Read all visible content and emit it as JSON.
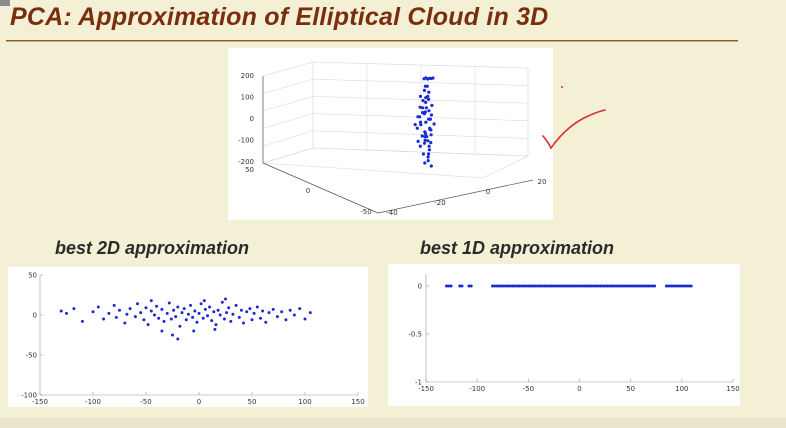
{
  "slide": {
    "title": "PCA: Approximation of Elliptical Cloud in 3D"
  },
  "panels": {
    "label_2d": "best 2D approximation",
    "label_1d": "best 1D approximation"
  },
  "colors": {
    "title": "#7a2e0e",
    "points": "#1a2bd6",
    "annotation": "#d63030",
    "background": "#f3f0d6"
  },
  "chart_data": [
    {
      "type": "scatter",
      "title": "",
      "projection": "3d",
      "z_ticks": [
        "200",
        "100",
        "0",
        "-100",
        "-200"
      ],
      "z_extra_tick": "50",
      "x_ticks": [
        "0",
        "-50"
      ],
      "y_ticks": [
        "20",
        "0",
        "-20",
        "-40"
      ],
      "zlim": [
        -200,
        200
      ],
      "points_description": "elongated vertical cloud",
      "points": [
        [
          0,
          0,
          180
        ],
        [
          1,
          0,
          175
        ],
        [
          2,
          0,
          178
        ],
        [
          -1,
          0,
          176
        ],
        [
          3,
          0,
          177
        ],
        [
          4,
          0,
          179
        ],
        [
          0,
          2,
          150
        ],
        [
          1,
          -2,
          140
        ],
        [
          -1,
          1,
          130
        ],
        [
          2,
          0,
          120
        ],
        [
          0,
          3,
          110
        ],
        [
          -2,
          -1,
          100
        ],
        [
          1,
          2,
          95
        ],
        [
          2,
          -3,
          90
        ],
        [
          -1,
          0,
          85
        ],
        [
          0,
          1,
          80
        ],
        [
          3,
          2,
          70
        ],
        [
          -3,
          1,
          60
        ],
        [
          1,
          0,
          55
        ],
        [
          0,
          -2,
          50
        ],
        [
          2,
          1,
          45
        ],
        [
          -2,
          2,
          40
        ],
        [
          1,
          -1,
          35
        ],
        [
          0,
          0,
          30
        ],
        [
          4,
          0,
          25
        ],
        [
          -4,
          1,
          20
        ],
        [
          2,
          3,
          15
        ],
        [
          -1,
          -3,
          10
        ],
        [
          3,
          -1,
          5
        ],
        [
          0,
          2,
          0
        ],
        [
          -2,
          0,
          -5
        ],
        [
          5,
          1,
          -10
        ],
        [
          -5,
          0,
          -15
        ],
        [
          1,
          4,
          -20
        ],
        [
          0,
          -4,
          -25
        ],
        [
          2,
          2,
          -30
        ],
        [
          -3,
          -2,
          -35
        ],
        [
          4,
          -1,
          -40
        ],
        [
          -1,
          3,
          -45
        ],
        [
          1,
          -2,
          -50
        ],
        [
          3,
          1,
          -55
        ],
        [
          -2,
          1,
          -60
        ],
        [
          0,
          0,
          -65
        ],
        [
          2,
          -2,
          -70
        ],
        [
          -1,
          2,
          -75
        ],
        [
          1,
          1,
          -80
        ],
        [
          -4,
          0,
          -85
        ],
        [
          3,
          0,
          -90
        ],
        [
          0,
          -1,
          -95
        ],
        [
          1,
          2,
          -100
        ],
        [
          -2,
          -2,
          -110
        ],
        [
          2,
          0,
          -120
        ],
        [
          0,
          3,
          -130
        ],
        [
          -1,
          -1,
          -140
        ],
        [
          1,
          0,
          -150
        ],
        [
          0,
          2,
          -160
        ],
        [
          -1,
          0,
          -175
        ],
        [
          2,
          1,
          -185
        ]
      ]
    },
    {
      "type": "scatter",
      "title": "",
      "x_ticks": [
        "-150",
        "-100",
        "-50",
        "0",
        "50",
        "100",
        "150"
      ],
      "y_ticks": [
        "50",
        "0",
        "-50",
        "-100"
      ],
      "xlim": [
        -150,
        150
      ],
      "ylim": [
        -100,
        50
      ],
      "points": [
        [
          -130,
          5
        ],
        [
          -125,
          2
        ],
        [
          -118,
          8
        ],
        [
          -110,
          -8
        ],
        [
          -100,
          4
        ],
        [
          -95,
          10
        ],
        [
          -90,
          -5
        ],
        [
          -85,
          2
        ],
        [
          -80,
          12
        ],
        [
          -78,
          -3
        ],
        [
          -75,
          6
        ],
        [
          -70,
          -10
        ],
        [
          -68,
          1
        ],
        [
          -65,
          8
        ],
        [
          -60,
          -2
        ],
        [
          -58,
          14
        ],
        [
          -55,
          3
        ],
        [
          -52,
          -6
        ],
        [
          -50,
          9
        ],
        [
          -48,
          -12
        ],
        [
          -45,
          5
        ],
        [
          -42,
          0
        ],
        [
          -40,
          11
        ],
        [
          -38,
          -4
        ],
        [
          -35,
          7
        ],
        [
          -33,
          -8
        ],
        [
          -30,
          2
        ],
        [
          -28,
          15
        ],
        [
          -26,
          -5
        ],
        [
          -24,
          6
        ],
        [
          -22,
          -2
        ],
        [
          -20,
          10
        ],
        [
          -18,
          -14
        ],
        [
          -16,
          3
        ],
        [
          -14,
          8
        ],
        [
          -12,
          -6
        ],
        [
          -10,
          1
        ],
        [
          -8,
          12
        ],
        [
          -6,
          -3
        ],
        [
          -4,
          5
        ],
        [
          -2,
          -9
        ],
        [
          0,
          2
        ],
        [
          2,
          14
        ],
        [
          4,
          -4
        ],
        [
          6,
          7
        ],
        [
          8,
          -1
        ],
        [
          10,
          10
        ],
        [
          12,
          -7
        ],
        [
          14,
          4
        ],
        [
          16,
          -12
        ],
        [
          18,
          6
        ],
        [
          20,
          0
        ],
        [
          22,
          16
        ],
        [
          24,
          -5
        ],
        [
          26,
          3
        ],
        [
          28,
          9
        ],
        [
          30,
          -8
        ],
        [
          32,
          1
        ],
        [
          35,
          12
        ],
        [
          38,
          -3
        ],
        [
          40,
          6
        ],
        [
          42,
          -10
        ],
        [
          45,
          4
        ],
        [
          48,
          8
        ],
        [
          50,
          -6
        ],
        [
          52,
          2
        ],
        [
          55,
          10
        ],
        [
          58,
          -4
        ],
        [
          60,
          5
        ],
        [
          63,
          -9
        ],
        [
          66,
          3
        ],
        [
          70,
          7
        ],
        [
          74,
          -2
        ],
        [
          78,
          4
        ],
        [
          82,
          -6
        ],
        [
          86,
          6
        ],
        [
          90,
          0
        ],
        [
          95,
          8
        ],
        [
          100,
          -5
        ],
        [
          105,
          3
        ],
        [
          -25,
          -25
        ],
        [
          -35,
          -20
        ],
        [
          -20,
          -30
        ],
        [
          15,
          -18
        ],
        [
          25,
          20
        ],
        [
          -5,
          -20
        ],
        [
          5,
          18
        ],
        [
          -45,
          18
        ]
      ]
    },
    {
      "type": "scatter",
      "title": "",
      "x_ticks": [
        "-150",
        "-100",
        "-50",
        "0",
        "50",
        "100",
        "150"
      ],
      "y_ticks": [
        "0",
        "-0.5",
        "-1"
      ],
      "xlim": [
        -150,
        150
      ],
      "ylim": [
        -1,
        0
      ],
      "segments": [
        [
          -130,
          -125
        ],
        [
          -117,
          -113
        ],
        [
          -108,
          -105
        ],
        [
          -85,
          75
        ],
        [
          85,
          110
        ]
      ]
    }
  ]
}
